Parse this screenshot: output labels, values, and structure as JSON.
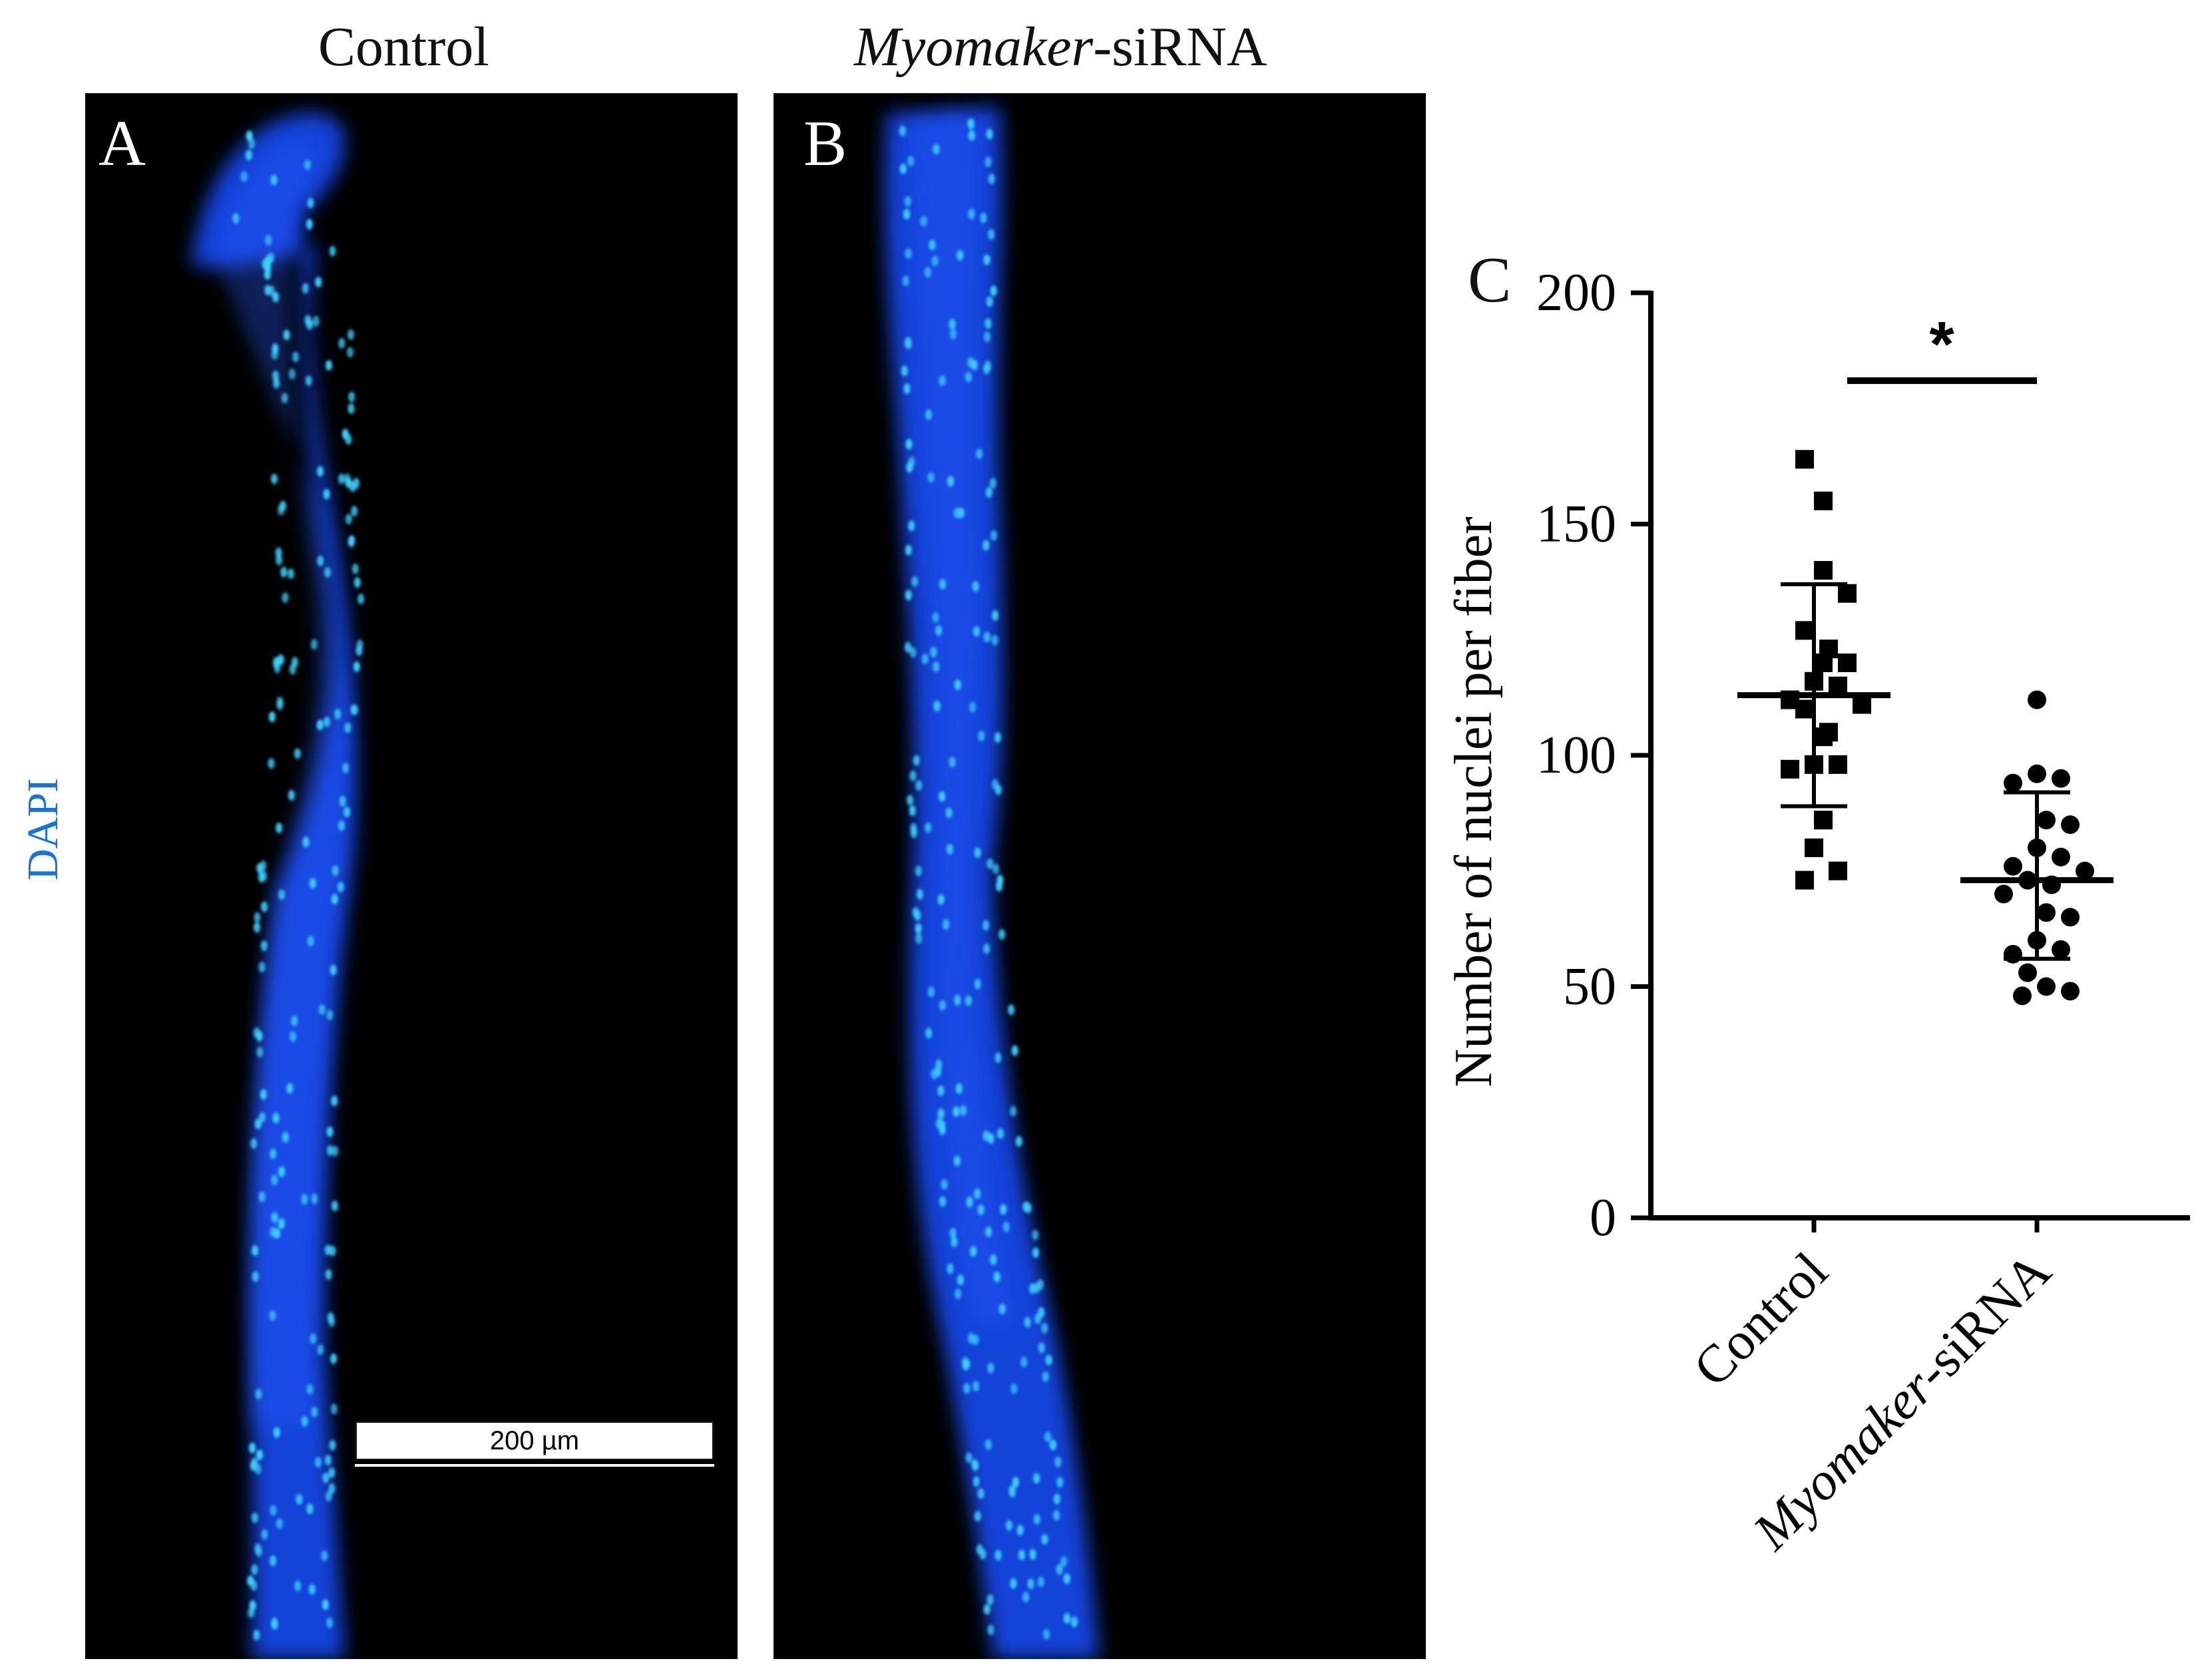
{
  "panels": {
    "a": {
      "letter": "A",
      "title": "Control"
    },
    "b": {
      "letter": "B",
      "title_italic": "Myomaker",
      "title_suffix": "-siRNA"
    },
    "c": {
      "letter": "C"
    }
  },
  "side_label": "DAPI",
  "scale_bar": {
    "label": "200 µm"
  },
  "colors": {
    "fiber": "#1446e6",
    "nuclei": "#3fd0ff",
    "background": "#000000",
    "side_label": "#1a73d9"
  },
  "chart_data": {
    "type": "scatter",
    "title": "",
    "xlabel": "",
    "ylabel": "Number of nuclei per fiber",
    "ylim": [
      0,
      200
    ],
    "yticks": [
      0,
      50,
      100,
      150,
      200
    ],
    "categories": [
      {
        "italic": "",
        "text": "Control"
      },
      {
        "italic": "Myomaker",
        "text": "-siRNA"
      }
    ],
    "series": [
      {
        "marker": "square",
        "values": [
          164,
          155,
          140,
          135,
          127,
          123,
          120,
          120,
          116,
          115,
          112,
          111,
          110,
          105,
          104,
          98,
          98,
          97,
          86,
          80,
          75,
          73
        ],
        "mean": 113,
        "sd_upper": 137,
        "sd_lower": 89
      },
      {
        "marker": "circle",
        "values": [
          112,
          96,
          95,
          94,
          86,
          85,
          80,
          78,
          76,
          75,
          73,
          72,
          70,
          66,
          65,
          60,
          58,
          57,
          53,
          50,
          49,
          48
        ],
        "mean": 73,
        "sd_upper": 92,
        "sd_lower": 56
      }
    ],
    "significance": {
      "label": "*",
      "y": 181
    }
  }
}
